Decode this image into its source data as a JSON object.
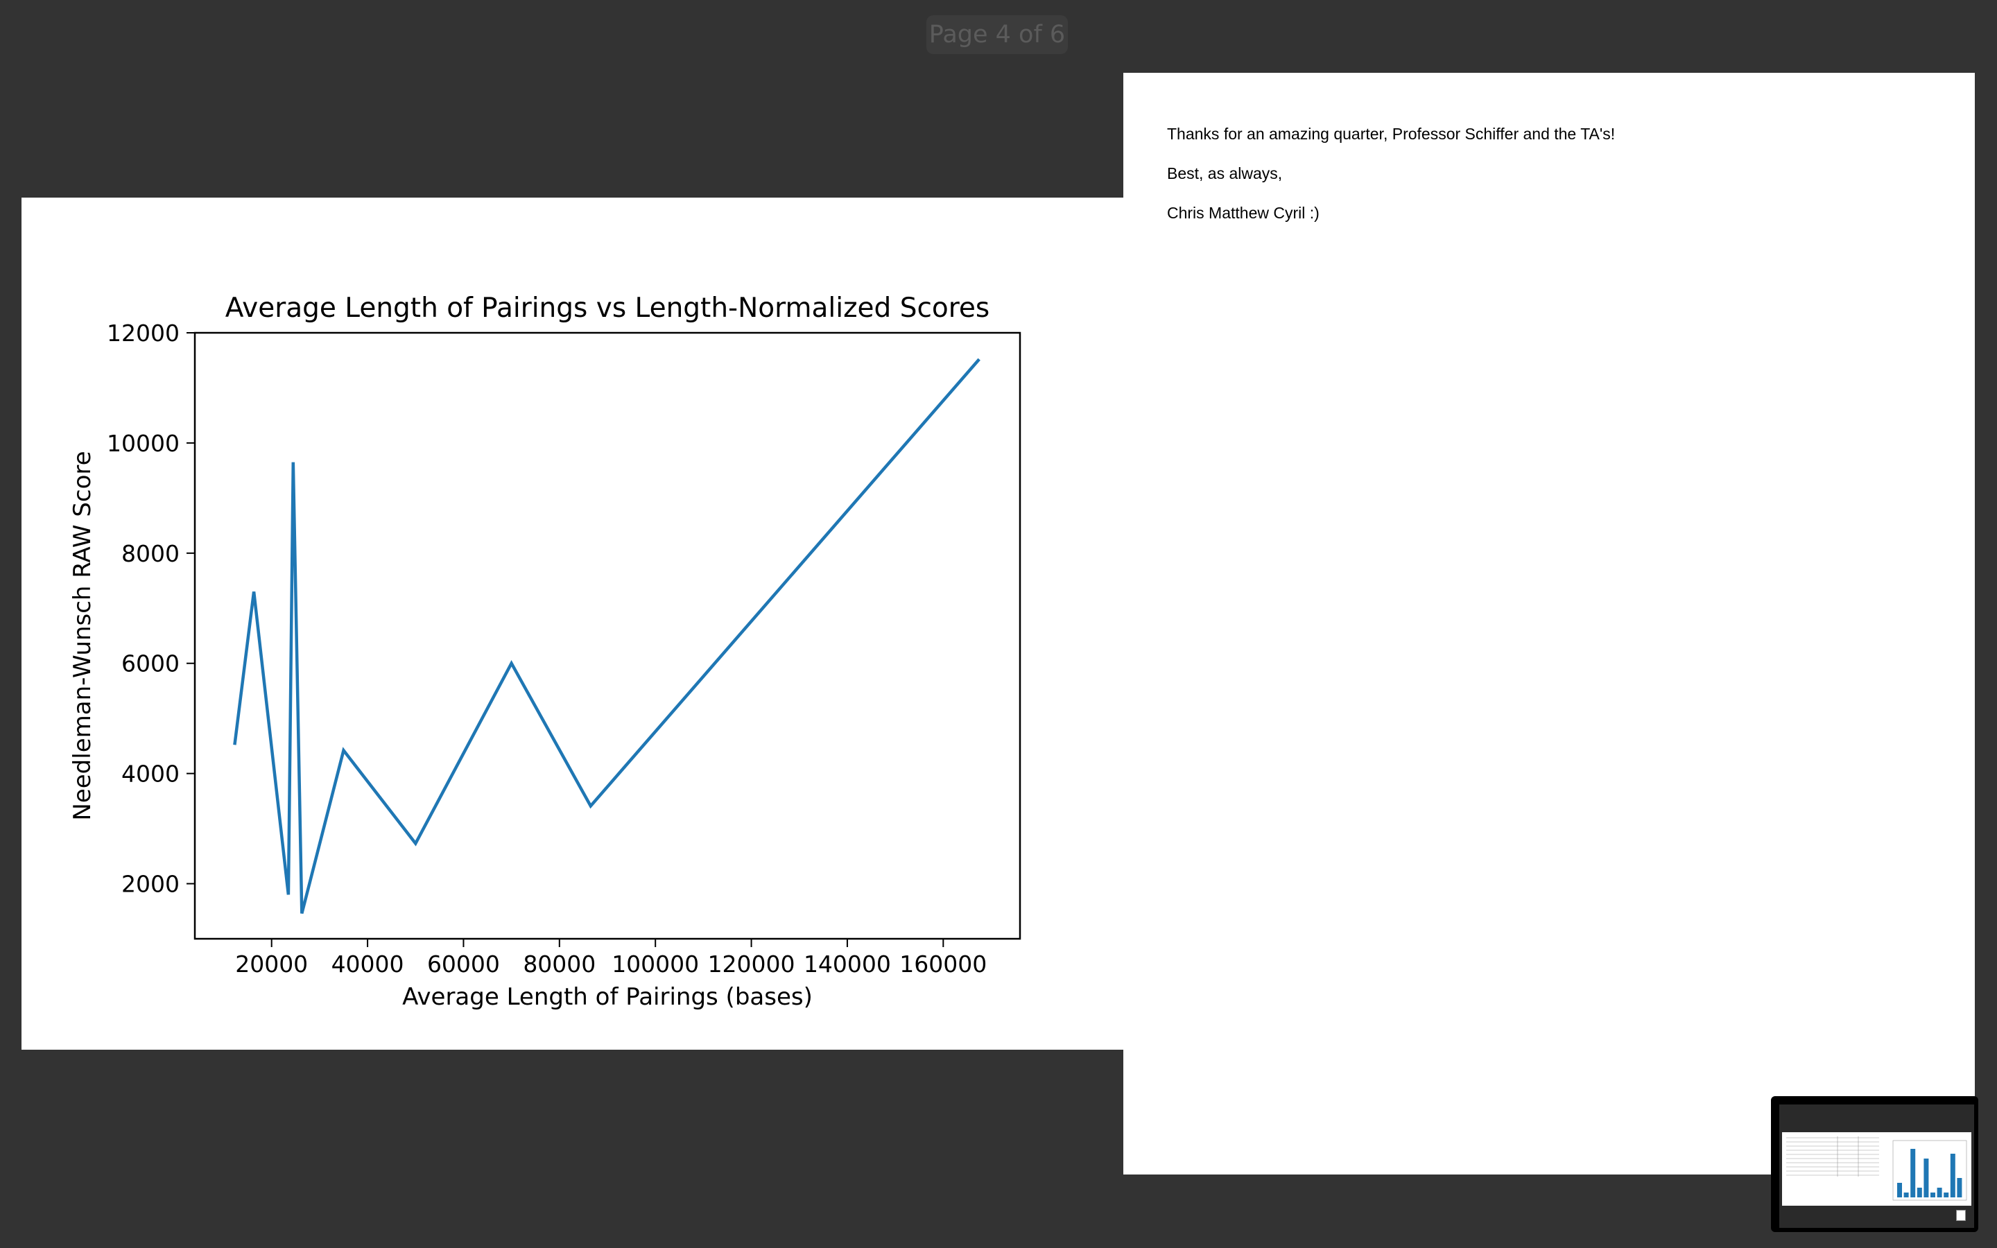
{
  "viewer": {
    "page_indicator": "Page 4 of 6"
  },
  "document": {
    "lines": [
      "Thanks for an amazing quarter, Professor Schiffer and the TA's!",
      "Best, as always,",
      "Chris Matthew Cyril :)"
    ]
  },
  "chart_data": {
    "type": "line",
    "title": "Average Length of Pairings vs Length-Normalized Scores",
    "xlabel": "Average Length of Pairings (bases)",
    "ylabel": "Needleman-Wunsch RAW Score",
    "xlim": [
      4000,
      176000
    ],
    "ylim": [
      1000,
      12000
    ],
    "xticks": [
      20000,
      40000,
      60000,
      80000,
      100000,
      120000,
      140000,
      160000
    ],
    "yticks": [
      2000,
      4000,
      6000,
      8000,
      10000,
      12000
    ],
    "grid": false,
    "color": "#1f77b4",
    "x": [
      12300,
      16300,
      23500,
      24500,
      26300,
      35000,
      50000,
      70000,
      86500,
      167500
    ],
    "y": [
      4520,
      7300,
      1800,
      9650,
      1460,
      4420,
      2730,
      6000,
      3410,
      11520
    ]
  },
  "thumbnail": {
    "bar_values": [
      3,
      1,
      10,
      2,
      8,
      1,
      2,
      1,
      9,
      4
    ],
    "bar_color": "#1f77b4"
  }
}
